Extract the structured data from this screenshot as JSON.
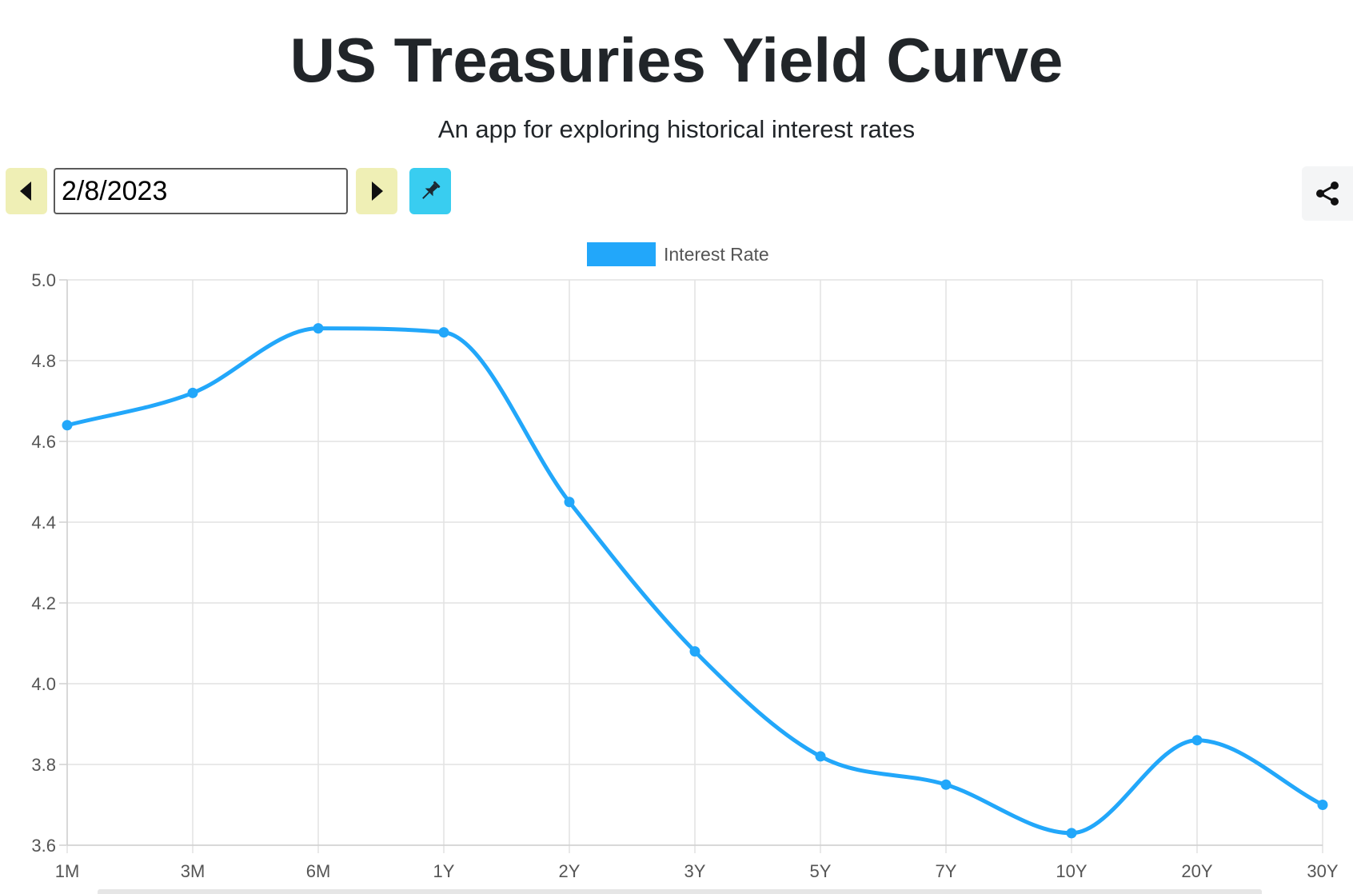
{
  "header": {
    "title": "US Treasuries Yield Curve",
    "subtitle": "An app for exploring historical interest rates"
  },
  "toolbar": {
    "prev_icon": "caret-left-icon",
    "date_value": "2/8/2023",
    "next_icon": "caret-right-icon",
    "pin_icon": "pin-icon",
    "share_icon": "share-icon",
    "colors": {
      "nav_button": "#efefb5",
      "pin_button": "#39cdf0",
      "share_button": "#f4f5f6"
    }
  },
  "chart_data": {
    "type": "line",
    "title": "",
    "xlabel": "",
    "ylabel": "",
    "categories": [
      "1M",
      "3M",
      "6M",
      "1Y",
      "2Y",
      "3Y",
      "5Y",
      "7Y",
      "10Y",
      "20Y",
      "30Y"
    ],
    "series": [
      {
        "name": "Interest Rate",
        "color": "#22a7fa",
        "values": [
          4.64,
          4.72,
          4.88,
          4.87,
          4.45,
          4.08,
          3.82,
          3.75,
          3.63,
          3.86,
          3.7
        ]
      }
    ],
    "ylim": [
      3.6,
      5.0
    ],
    "yticks": [
      "3.6",
      "3.8",
      "4.0",
      "4.2",
      "4.4",
      "4.6",
      "4.8",
      "5.0"
    ],
    "grid": true,
    "legend_position": "top-center",
    "smooth": true
  }
}
